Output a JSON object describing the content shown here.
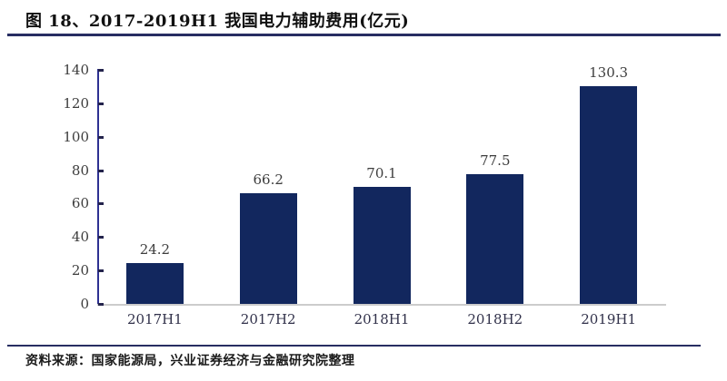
{
  "title": "图 18、2017-2019H1 我国电力辅助费用(亿元)",
  "source": "资料来源：国家能源局，兴业证券经济与金融研究院整理",
  "colors": {
    "bar": "#12275e",
    "axis_line": "#2e3192",
    "tick_mark": "#24244c",
    "title_rule": "#272d62",
    "footer_rule": "#272d62",
    "baseline": "#cccccc",
    "value_label": "#3d3d3d",
    "category_label": "#31314a"
  },
  "chart_data": {
    "type": "bar",
    "title": "2017-2019H1 我国电力辅助费用(亿元)",
    "categories": [
      "2017H1",
      "2017H2",
      "2018H1",
      "2018H2",
      "2019H1"
    ],
    "values": [
      24.2,
      66.2,
      70.1,
      77.5,
      130.3
    ],
    "data_labels": [
      "24.2",
      "66.2",
      "70.1",
      "77.5",
      "130.3"
    ],
    "xlabel": "",
    "ylabel": "",
    "ylim": [
      0,
      140
    ],
    "yticks": [
      0,
      20,
      40,
      60,
      80,
      100,
      120,
      140
    ],
    "grid": false,
    "legend": "none",
    "bar_color": "#12275e"
  }
}
